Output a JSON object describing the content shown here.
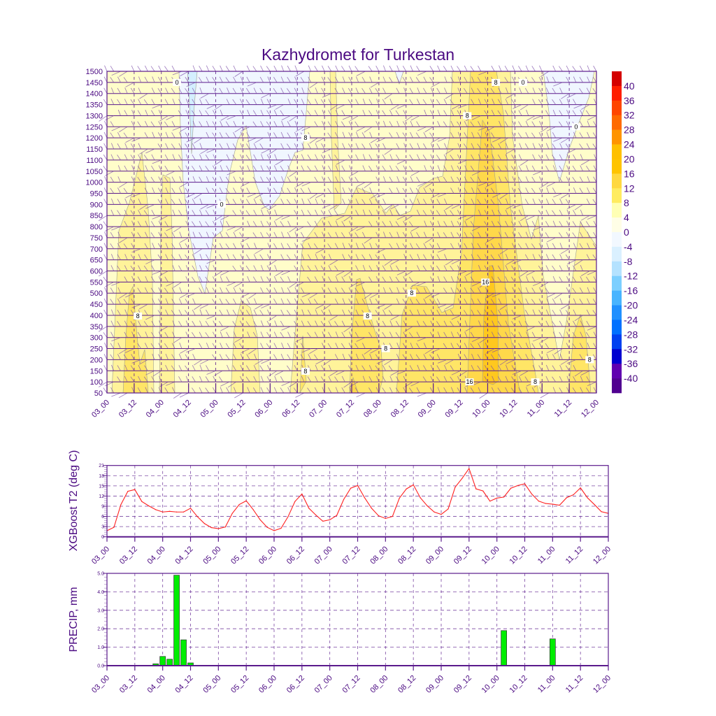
{
  "title": "Kazhydromet for Turkestan",
  "chart_data": [
    {
      "type": "heatmap",
      "name": "temperature-wind cross-section",
      "x_labels": [
        "03_00",
        "03_12",
        "04_00",
        "04_12",
        "05_00",
        "05_12",
        "06_00",
        "06_12",
        "07_00",
        "07_12",
        "08_00",
        "08_12",
        "09_00",
        "09_12",
        "10_00",
        "10_12",
        "11_00",
        "11_12",
        "12_00"
      ],
      "x_range_hours": [
        0,
        216
      ],
      "y_levels": [
        50,
        100,
        150,
        200,
        250,
        300,
        350,
        400,
        450,
        500,
        550,
        600,
        650,
        700,
        750,
        800,
        850,
        900,
        950,
        1000,
        1050,
        1100,
        1150,
        1200,
        1250,
        1300,
        1350,
        1400,
        1450,
        1500
      ],
      "ylim": [
        50,
        1500
      ],
      "colorbar": {
        "labels": [
          "40",
          "36",
          "32",
          "28",
          "24",
          "20",
          "16",
          "12",
          "8",
          "4",
          "0",
          "-4",
          "-8",
          "-12",
          "-16",
          "-20",
          "-24",
          "-28",
          "-32",
          "-36",
          "-40"
        ],
        "colors": [
          "#d40000",
          "#ff1e00",
          "#ff4600",
          "#ff6a00",
          "#ff9400",
          "#ffc000",
          "#ffc400",
          "#ffd840",
          "#ffec60",
          "#ffffb4",
          "#fffee6",
          "#f2f8ff",
          "#daf0ff",
          "#b4e2ff",
          "#7ccfff",
          "#48b4ff",
          "#2090ff",
          "#0070ff",
          "#0040f0",
          "#0000d0",
          "#6000b0",
          "#500090"
        ]
      },
      "fill_colors": {
        "bg_4_8": "#fffdca",
        "neg_0_4": "#f0f6ff",
        "neg_4_8": "#d4efff",
        "pos_8_12": "#fff39a",
        "pos_12_16": "#ffe566",
        "pos_16_20": "#ffd84a",
        "pos_20_24": "#ffc81e"
      },
      "contour_labels": [
        [
          13.6,
          397,
          "8"
        ],
        [
          87.6,
          148,
          "8"
        ],
        [
          115,
          397,
          "8"
        ],
        [
          123,
          250,
          "8"
        ],
        [
          134.5,
          500,
          "8"
        ],
        [
          159,
          1300,
          "8"
        ],
        [
          171.6,
          1450,
          "8"
        ],
        [
          167,
          550,
          "16"
        ],
        [
          160,
          100,
          "16"
        ],
        [
          189,
          100,
          "8"
        ],
        [
          213,
          200,
          "8"
        ],
        [
          87.6,
          1200,
          "8"
        ],
        [
          50.6,
          900,
          "0"
        ],
        [
          30.9,
          1450,
          "0"
        ],
        [
          183.6,
          1450,
          "0"
        ],
        [
          207,
          1250,
          "0"
        ]
      ]
    },
    {
      "type": "line",
      "ylabel": "XGBoost T2 (deg C)",
      "x_labels": [
        "03_00",
        "03_12",
        "04_00",
        "04_12",
        "05_00",
        "05_12",
        "06_00",
        "06_12",
        "07_00",
        "07_12",
        "08_00",
        "08_12",
        "09_00",
        "09_12",
        "10_00",
        "10_12",
        "11_00",
        "11_12",
        "12_00"
      ],
      "x_step_hours": 3,
      "ylim": [
        0,
        21
      ],
      "yticks": [
        "0",
        "3",
        "6",
        "9",
        "12",
        "15",
        "18",
        "21"
      ],
      "color": "#ff2020",
      "values": [
        1.8,
        2.8,
        9.5,
        13.4,
        13.9,
        10.4,
        9.1,
        8.0,
        7.3,
        7.5,
        7.3,
        7.3,
        8.4,
        5.9,
        3.9,
        2.7,
        2.4,
        2.9,
        6.9,
        9.5,
        10.6,
        8.0,
        5.0,
        2.8,
        1.8,
        2.5,
        5.9,
        10.4,
        12.6,
        8.4,
        6.4,
        4.6,
        5.0,
        6.3,
        11.0,
        14.3,
        15.1,
        11.5,
        8.4,
        6.2,
        5.4,
        6.0,
        11.4,
        14.1,
        15.3,
        11.5,
        9.1,
        7.3,
        6.6,
        8.2,
        14.6,
        17.2,
        20.1,
        14.1,
        13.5,
        10.5,
        11.4,
        11.7,
        14.3,
        15.1,
        15.6,
        12.6,
        10.5,
        9.8,
        9.6,
        9.3,
        11.5,
        12.4,
        14.4,
        11.5,
        9.5,
        7.4,
        6.9
      ]
    },
    {
      "type": "bar",
      "ylabel": "PRECIP, mm",
      "x_labels": [
        "03_00",
        "03_12",
        "04_00",
        "04_12",
        "05_00",
        "05_12",
        "06_00",
        "06_12",
        "07_00",
        "07_12",
        "08_00",
        "08_12",
        "09_00",
        "09_12",
        "10_00",
        "10_12",
        "11_00",
        "11_12",
        "12_00"
      ],
      "x_step_hours": 3,
      "ylim": [
        0,
        5
      ],
      "yticks": [
        "0.0",
        "1.0",
        "2.0",
        "3.0",
        "4.0",
        "5.0"
      ],
      "color": "#00ee00",
      "values": [
        0,
        0,
        0,
        0,
        0,
        0,
        0,
        0.1,
        0.5,
        0.35,
        4.9,
        1.4,
        0.15,
        0,
        0,
        0,
        0,
        0,
        0,
        0,
        0,
        0,
        0,
        0,
        0,
        0,
        0,
        0,
        0,
        0,
        0,
        0,
        0,
        0,
        0,
        0,
        0,
        0,
        0,
        0,
        0,
        0,
        0,
        0,
        0,
        0,
        0,
        0,
        0,
        0,
        0,
        0,
        0,
        0,
        0,
        0,
        0,
        1.9,
        0,
        0,
        0,
        0,
        0,
        0,
        1.45,
        0,
        0,
        0,
        0,
        0,
        0,
        0,
        0
      ]
    }
  ]
}
